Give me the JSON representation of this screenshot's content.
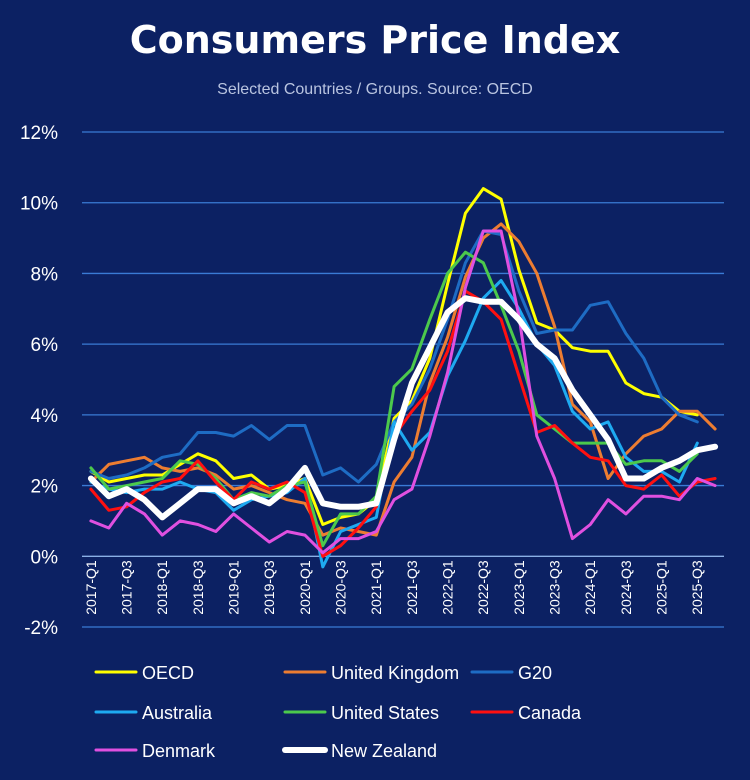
{
  "title": "Consumers Price Index",
  "subtitle": "Selected Countries / Groups. Source: OECD",
  "chart_data": {
    "type": "line",
    "title": "Consumers Price Index",
    "subtitle": "Selected Countries / Groups. Source: OECD",
    "xlabel": "",
    "ylabel": "",
    "ylim": [
      -2,
      12
    ],
    "yticks": [
      -2,
      0,
      2,
      4,
      6,
      8,
      10,
      12
    ],
    "ytick_labels": [
      "-2%",
      "0%",
      "2%",
      "4%",
      "6%",
      "8%",
      "10%",
      "12%"
    ],
    "grid": true,
    "legend_position": "bottom",
    "x": [
      "2017-Q1",
      "2017-Q2",
      "2017-Q3",
      "2017-Q4",
      "2018-Q1",
      "2018-Q2",
      "2018-Q3",
      "2018-Q4",
      "2019-Q1",
      "2019-Q2",
      "2019-Q3",
      "2019-Q4",
      "2020-Q1",
      "2020-Q2",
      "2020-Q3",
      "2020-Q4",
      "2021-Q1",
      "2021-Q2",
      "2021-Q3",
      "2021-Q4",
      "2022-Q1",
      "2022-Q2",
      "2022-Q3",
      "2022-Q4",
      "2023-Q1",
      "2023-Q2",
      "2023-Q3",
      "2023-Q4",
      "2024-Q1",
      "2024-Q2",
      "2024-Q3",
      "2024-Q4",
      "2025-Q1",
      "2025-Q2",
      "2025-Q3",
      "2025-Q4"
    ],
    "x_tick_labels": [
      "2017-Q1",
      "",
      "2017-Q3",
      "",
      "2018-Q1",
      "",
      "2018-Q3",
      "",
      "2019-Q1",
      "",
      "2019-Q3",
      "",
      "2020-Q1",
      "",
      "2020-Q3",
      "",
      "2021-Q1",
      "",
      "2021-Q3",
      "",
      "2022-Q1",
      "",
      "2022-Q3",
      "",
      "2023-Q1",
      "",
      "2023-Q3",
      "",
      "2024-Q1",
      "",
      "2024-Q3",
      "",
      "2025-Q1",
      "",
      "2025-Q3",
      ""
    ],
    "series": [
      {
        "name": "OECD",
        "color": "#ffff00",
        "width": 3,
        "values": [
          2.4,
          2.1,
          2.2,
          2.3,
          2.3,
          2.6,
          2.9,
          2.7,
          2.2,
          2.3,
          1.9,
          2.0,
          2.2,
          0.9,
          1.1,
          1.2,
          1.6,
          3.9,
          4.4,
          5.6,
          7.7,
          9.7,
          10.4,
          10.1,
          8.1,
          6.6,
          6.4,
          5.9,
          5.8,
          5.8,
          4.9,
          4.6,
          4.5,
          4.1,
          4.0,
          null
        ]
      },
      {
        "name": "United Kingdom",
        "color": "#ed7d31",
        "width": 3,
        "values": [
          2.1,
          2.6,
          2.7,
          2.8,
          2.5,
          2.4,
          2.5,
          2.3,
          1.9,
          2.0,
          1.8,
          1.6,
          1.5,
          0.6,
          0.8,
          0.7,
          0.6,
          2.1,
          2.8,
          4.9,
          6.2,
          7.9,
          9.0,
          9.4,
          8.9,
          8.0,
          6.5,
          4.3,
          3.8,
          2.2,
          2.9,
          3.4,
          3.6,
          4.1,
          4.1,
          3.6
        ]
      },
      {
        "name": "G20",
        "color": "#1e6cc4",
        "width": 3,
        "values": [
          2.4,
          2.2,
          2.3,
          2.5,
          2.8,
          2.9,
          3.5,
          3.5,
          3.4,
          3.7,
          3.3,
          3.7,
          3.7,
          2.3,
          2.5,
          2.1,
          2.6,
          3.8,
          4.3,
          5.3,
          6.7,
          8.3,
          9.2,
          9.1,
          7.5,
          6.3,
          6.4,
          6.4,
          7.1,
          7.2,
          6.3,
          5.6,
          4.5,
          4.0,
          3.8,
          null
        ]
      },
      {
        "name": "Australia",
        "color": "#1eaaf1",
        "width": 3,
        "values": [
          2.1,
          1.9,
          1.8,
          1.9,
          1.9,
          2.1,
          1.9,
          1.8,
          1.3,
          1.6,
          1.7,
          1.8,
          2.2,
          -0.3,
          0.7,
          0.9,
          1.1,
          3.8,
          3.0,
          3.5,
          5.1,
          6.1,
          7.3,
          7.8,
          7.0,
          6.0,
          5.4,
          4.1,
          3.6,
          3.8,
          2.8,
          2.4,
          2.4,
          2.1,
          3.2,
          null
        ]
      },
      {
        "name": "United States",
        "color": "#4cc94c",
        "width": 3,
        "values": [
          2.5,
          1.9,
          2.0,
          2.1,
          2.2,
          2.7,
          2.6,
          2.2,
          1.6,
          1.8,
          1.7,
          2.0,
          2.1,
          0.3,
          1.2,
          1.2,
          1.7,
          4.8,
          5.3,
          6.7,
          8.0,
          8.6,
          8.3,
          7.1,
          5.8,
          4.0,
          3.6,
          3.2,
          3.2,
          3.2,
          2.6,
          2.7,
          2.7,
          2.4,
          2.9,
          null
        ]
      },
      {
        "name": "Canada",
        "color": "#ff1010",
        "width": 3,
        "values": [
          1.9,
          1.3,
          1.4,
          1.8,
          2.1,
          2.2,
          2.7,
          2.1,
          1.6,
          2.1,
          1.9,
          2.1,
          1.8,
          0.0,
          0.3,
          0.8,
          1.4,
          3.4,
          4.1,
          4.7,
          5.8,
          7.5,
          7.2,
          6.7,
          5.1,
          3.5,
          3.7,
          3.2,
          2.8,
          2.7,
          2.0,
          1.9,
          2.3,
          1.7,
          2.1,
          2.2
        ]
      },
      {
        "name": "Denmark",
        "color": "#e050e0",
        "width": 3,
        "values": [
          1.0,
          0.8,
          1.5,
          1.2,
          0.6,
          1.0,
          0.9,
          0.7,
          1.2,
          0.8,
          0.4,
          0.7,
          0.6,
          0.1,
          0.5,
          0.5,
          0.7,
          1.6,
          1.9,
          3.4,
          5.2,
          7.6,
          9.2,
          9.2,
          6.8,
          3.4,
          2.2,
          0.5,
          0.9,
          1.6,
          1.2,
          1.7,
          1.7,
          1.6,
          2.2,
          2.0
        ]
      },
      {
        "name": "New Zealand",
        "color": "#ffffff",
        "width": 6,
        "values": [
          2.2,
          1.7,
          1.9,
          1.6,
          1.1,
          1.5,
          1.9,
          1.9,
          1.5,
          1.7,
          1.5,
          1.9,
          2.5,
          1.5,
          1.4,
          1.4,
          1.5,
          3.3,
          4.9,
          5.9,
          6.9,
          7.3,
          7.2,
          7.2,
          6.7,
          6.0,
          5.6,
          4.7,
          4.0,
          3.3,
          2.2,
          2.2,
          2.5,
          2.7,
          3.0,
          3.1
        ]
      }
    ]
  },
  "legend": [
    {
      "label": "OECD"
    },
    {
      "label": "United Kingdom"
    },
    {
      "label": "G20"
    },
    {
      "label": "Australia"
    },
    {
      "label": "United States"
    },
    {
      "label": "Canada"
    },
    {
      "label": "Denmark"
    },
    {
      "label": "New Zealand"
    }
  ]
}
